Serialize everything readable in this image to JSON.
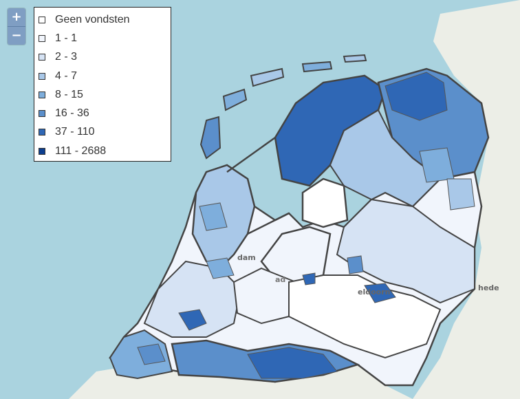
{
  "controls": {
    "zoom_in": "+",
    "zoom_out": "−"
  },
  "legend": {
    "items": [
      {
        "label": "Geen vondsten",
        "color": "#ffffff"
      },
      {
        "label": "1 - 1",
        "color": "#f1f5fc"
      },
      {
        "label": "2 - 3",
        "color": "#d6e3f4"
      },
      {
        "label": "4 - 7",
        "color": "#a9c8e8"
      },
      {
        "label": "8 - 15",
        "color": "#7eaedc"
      },
      {
        "label": "16 - 36",
        "color": "#5b8fcb"
      },
      {
        "label": "37 - 110",
        "color": "#2f67b5"
      },
      {
        "label": "111 - 2688",
        "color": "#0d3f8f"
      }
    ]
  },
  "place_labels": {
    "dam": "dam",
    "lelystad_fragment": "ad",
    "enschede": "hede",
    "apeldoorn": "eldoorn"
  },
  "colors": {
    "sea": "#aad3df",
    "land": "#e9ece4",
    "border": "#444444"
  }
}
